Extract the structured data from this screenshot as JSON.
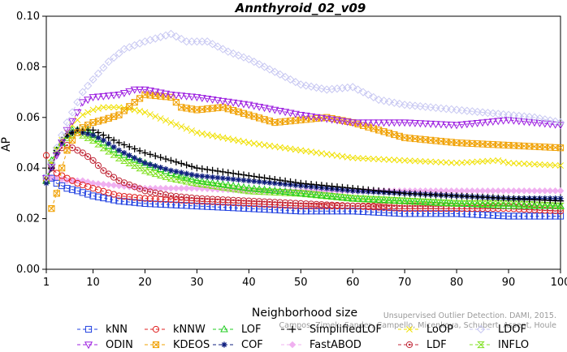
{
  "chart_data": {
    "type": "line",
    "title": "Annthyroid_02_v09",
    "xlabel": "Neighborhood size",
    "ylabel": "AP",
    "xlim": [
      1,
      100
    ],
    "ylim": [
      0,
      0.1
    ],
    "x_ticks": [
      1,
      10,
      20,
      30,
      40,
      50,
      60,
      70,
      80,
      90,
      100
    ],
    "y_ticks": [
      "0.00",
      "0.02",
      "0.04",
      "0.06",
      "0.08",
      "0.10"
    ],
    "grid": false,
    "legend_position": "bottom",
    "watermark_lines": [
      "Unsupervised Outlier Detection. DAMI, 2015.",
      "Campos, Zimek, Sander, Campello, Micenkova, Schubert, Assent, Houle"
    ],
    "series": [
      {
        "name": "kNN",
        "color": "#1f3fe0",
        "marker": "square-open",
        "points": [
          [
            1,
            0.036
          ],
          [
            2,
            0.036
          ],
          [
            3,
            0.034
          ],
          [
            5,
            0.032
          ],
          [
            7,
            0.031
          ],
          [
            10,
            0.029
          ],
          [
            15,
            0.027
          ],
          [
            20,
            0.026
          ],
          [
            30,
            0.025
          ],
          [
            40,
            0.024
          ],
          [
            50,
            0.023
          ],
          [
            60,
            0.023
          ],
          [
            70,
            0.022
          ],
          [
            80,
            0.022
          ],
          [
            90,
            0.021
          ],
          [
            100,
            0.021
          ]
        ]
      },
      {
        "name": "kNNW",
        "color": "#e02020",
        "marker": "circle-open",
        "points": [
          [
            1,
            0.045
          ],
          [
            2,
            0.04
          ],
          [
            3,
            0.038
          ],
          [
            5,
            0.036
          ],
          [
            7,
            0.034
          ],
          [
            10,
            0.032
          ],
          [
            15,
            0.029
          ],
          [
            20,
            0.028
          ],
          [
            30,
            0.027
          ],
          [
            40,
            0.026
          ],
          [
            50,
            0.025
          ],
          [
            60,
            0.025
          ],
          [
            70,
            0.024
          ],
          [
            80,
            0.024
          ],
          [
            90,
            0.024
          ],
          [
            100,
            0.023
          ]
        ]
      },
      {
        "name": "LOF",
        "color": "#22cc22",
        "marker": "triangle-open",
        "points": [
          [
            1,
            0.035
          ],
          [
            2,
            0.043
          ],
          [
            3,
            0.047
          ],
          [
            4,
            0.05
          ],
          [
            5,
            0.053
          ],
          [
            6,
            0.055
          ],
          [
            7,
            0.055
          ],
          [
            8,
            0.055
          ],
          [
            9,
            0.055
          ],
          [
            10,
            0.053
          ],
          [
            12,
            0.05
          ],
          [
            15,
            0.046
          ],
          [
            20,
            0.042
          ],
          [
            25,
            0.038
          ],
          [
            30,
            0.035
          ],
          [
            40,
            0.032
          ],
          [
            50,
            0.03
          ],
          [
            60,
            0.028
          ],
          [
            70,
            0.027
          ],
          [
            80,
            0.026
          ],
          [
            90,
            0.025
          ],
          [
            100,
            0.025
          ]
        ]
      },
      {
        "name": "SimplifiedLOF",
        "color": "#000000",
        "marker": "plus",
        "points": [
          [
            1,
            0.036
          ],
          [
            2,
            0.04
          ],
          [
            3,
            0.047
          ],
          [
            4,
            0.051
          ],
          [
            5,
            0.053
          ],
          [
            6,
            0.054
          ],
          [
            7,
            0.055
          ],
          [
            8,
            0.055
          ],
          [
            9,
            0.055
          ],
          [
            10,
            0.055
          ],
          [
            12,
            0.053
          ],
          [
            15,
            0.05
          ],
          [
            20,
            0.046
          ],
          [
            25,
            0.043
          ],
          [
            30,
            0.04
          ],
          [
            40,
            0.037
          ],
          [
            50,
            0.034
          ],
          [
            60,
            0.032
          ],
          [
            70,
            0.03
          ],
          [
            80,
            0.029
          ],
          [
            90,
            0.028
          ],
          [
            100,
            0.027
          ]
        ]
      },
      {
        "name": "LoOP",
        "color": "#f0e000",
        "marker": "x",
        "points": [
          [
            1,
            0.036
          ],
          [
            2,
            0.042
          ],
          [
            3,
            0.047
          ],
          [
            4,
            0.051
          ],
          [
            5,
            0.054
          ],
          [
            6,
            0.057
          ],
          [
            7,
            0.059
          ],
          [
            8,
            0.061
          ],
          [
            10,
            0.063
          ],
          [
            12,
            0.064
          ],
          [
            15,
            0.064
          ],
          [
            18,
            0.063
          ],
          [
            20,
            0.062
          ],
          [
            25,
            0.058
          ],
          [
            30,
            0.054
          ],
          [
            40,
            0.05
          ],
          [
            50,
            0.047
          ],
          [
            60,
            0.044
          ],
          [
            70,
            0.043
          ],
          [
            80,
            0.042
          ],
          [
            88,
            0.043
          ],
          [
            90,
            0.042
          ],
          [
            100,
            0.041
          ]
        ]
      },
      {
        "name": "LDOF",
        "color": "#c8c8f2",
        "marker": "diamond-open",
        "points": [
          [
            1,
            0.036
          ],
          [
            2,
            0.042
          ],
          [
            3,
            0.048
          ],
          [
            4,
            0.053
          ],
          [
            5,
            0.058
          ],
          [
            6,
            0.062
          ],
          [
            7,
            0.066
          ],
          [
            8,
            0.07
          ],
          [
            10,
            0.075
          ],
          [
            13,
            0.082
          ],
          [
            16,
            0.087
          ],
          [
            20,
            0.09
          ],
          [
            25,
            0.093
          ],
          [
            28,
            0.09
          ],
          [
            32,
            0.09
          ],
          [
            36,
            0.086
          ],
          [
            40,
            0.083
          ],
          [
            45,
            0.078
          ],
          [
            50,
            0.073
          ],
          [
            55,
            0.071
          ],
          [
            60,
            0.072
          ],
          [
            65,
            0.067
          ],
          [
            70,
            0.065
          ],
          [
            75,
            0.064
          ],
          [
            80,
            0.063
          ],
          [
            85,
            0.062
          ],
          [
            90,
            0.061
          ],
          [
            95,
            0.06
          ],
          [
            100,
            0.058
          ]
        ]
      },
      {
        "name": "ODIN",
        "color": "#9d20e0",
        "marker": "triangle-down-open",
        "points": [
          [
            1,
            0.036
          ],
          [
            3,
            0.045
          ],
          [
            5,
            0.055
          ],
          [
            7,
            0.062
          ],
          [
            8,
            0.066
          ],
          [
            10,
            0.068
          ],
          [
            15,
            0.069
          ],
          [
            18,
            0.071
          ],
          [
            20,
            0.071
          ],
          [
            25,
            0.069
          ],
          [
            30,
            0.068
          ],
          [
            40,
            0.065
          ],
          [
            50,
            0.061
          ],
          [
            60,
            0.058
          ],
          [
            70,
            0.058
          ],
          [
            80,
            0.057
          ],
          [
            90,
            0.059
          ],
          [
            95,
            0.058
          ],
          [
            100,
            0.057
          ]
        ]
      },
      {
        "name": "KDEOS",
        "color": "#f0a000",
        "marker": "square-x",
        "points": [
          [
            2,
            0.024
          ],
          [
            3,
            0.03
          ],
          [
            4,
            0.04
          ],
          [
            5,
            0.047
          ],
          [
            6,
            0.051
          ],
          [
            7,
            0.054
          ],
          [
            8,
            0.056
          ],
          [
            10,
            0.058
          ],
          [
            12,
            0.059
          ],
          [
            15,
            0.061
          ],
          [
            18,
            0.066
          ],
          [
            20,
            0.069
          ],
          [
            25,
            0.068
          ],
          [
            27,
            0.064
          ],
          [
            30,
            0.063
          ],
          [
            35,
            0.064
          ],
          [
            40,
            0.061
          ],
          [
            45,
            0.058
          ],
          [
            50,
            0.059
          ],
          [
            55,
            0.06
          ],
          [
            60,
            0.058
          ],
          [
            65,
            0.055
          ],
          [
            70,
            0.052
          ],
          [
            75,
            0.051
          ],
          [
            80,
            0.05
          ],
          [
            90,
            0.049
          ],
          [
            100,
            0.048
          ]
        ]
      },
      {
        "name": "COF",
        "color": "#102080",
        "marker": "asterisk",
        "points": [
          [
            1,
            0.034
          ],
          [
            2,
            0.04
          ],
          [
            3,
            0.046
          ],
          [
            4,
            0.05
          ],
          [
            5,
            0.053
          ],
          [
            6,
            0.054
          ],
          [
            7,
            0.055
          ],
          [
            8,
            0.054
          ],
          [
            10,
            0.053
          ],
          [
            12,
            0.051
          ],
          [
            15,
            0.047
          ],
          [
            20,
            0.042
          ],
          [
            25,
            0.039
          ],
          [
            30,
            0.037
          ],
          [
            40,
            0.035
          ],
          [
            50,
            0.033
          ],
          [
            60,
            0.031
          ],
          [
            70,
            0.03
          ],
          [
            80,
            0.029
          ],
          [
            90,
            0.028
          ],
          [
            100,
            0.028
          ]
        ]
      },
      {
        "name": "FastABOD",
        "color": "#f0b0f0",
        "marker": "diamond-filled",
        "points": [
          [
            1,
            0.036
          ],
          [
            3,
            0.036
          ],
          [
            5,
            0.035
          ],
          [
            8,
            0.035
          ],
          [
            10,
            0.034
          ],
          [
            15,
            0.033
          ],
          [
            20,
            0.032
          ],
          [
            30,
            0.032
          ],
          [
            40,
            0.031
          ],
          [
            50,
            0.031
          ],
          [
            60,
            0.031
          ],
          [
            70,
            0.031
          ],
          [
            80,
            0.031
          ],
          [
            90,
            0.031
          ],
          [
            100,
            0.031
          ]
        ]
      },
      {
        "name": "LDF",
        "color": "#c02838",
        "marker": "circle-dot",
        "points": [
          [
            1,
            0.035
          ],
          [
            2,
            0.04
          ],
          [
            3,
            0.046
          ],
          [
            4,
            0.048
          ],
          [
            5,
            0.049
          ],
          [
            6,
            0.048
          ],
          [
            7,
            0.047
          ],
          [
            8,
            0.046
          ],
          [
            10,
            0.043
          ],
          [
            12,
            0.039
          ],
          [
            15,
            0.035
          ],
          [
            20,
            0.031
          ],
          [
            25,
            0.029
          ],
          [
            30,
            0.028
          ],
          [
            40,
            0.027
          ],
          [
            50,
            0.026
          ],
          [
            60,
            0.025
          ],
          [
            70,
            0.025
          ],
          [
            80,
            0.025
          ],
          [
            90,
            0.025
          ],
          [
            100,
            0.024
          ]
        ]
      },
      {
        "name": "INFLO",
        "color": "#80e020",
        "marker": "hourglass",
        "points": [
          [
            1,
            0.035
          ],
          [
            2,
            0.042
          ],
          [
            3,
            0.047
          ],
          [
            4,
            0.05
          ],
          [
            5,
            0.052
          ],
          [
            6,
            0.053
          ],
          [
            7,
            0.054
          ],
          [
            8,
            0.053
          ],
          [
            10,
            0.051
          ],
          [
            12,
            0.048
          ],
          [
            15,
            0.044
          ],
          [
            20,
            0.039
          ],
          [
            25,
            0.036
          ],
          [
            30,
            0.034
          ],
          [
            40,
            0.031
          ],
          [
            50,
            0.03
          ],
          [
            60,
            0.028
          ],
          [
            70,
            0.027
          ],
          [
            80,
            0.026
          ],
          [
            90,
            0.026
          ],
          [
            100,
            0.025
          ]
        ]
      }
    ]
  },
  "legend_rows": [
    [
      "kNN",
      "kNNW",
      "LOF",
      "SimplifiedLOF",
      "LoOP",
      "LDOF"
    ],
    [
      "ODIN",
      "KDEOS",
      "COF",
      "FastABOD",
      "LDF",
      "INFLO"
    ]
  ]
}
